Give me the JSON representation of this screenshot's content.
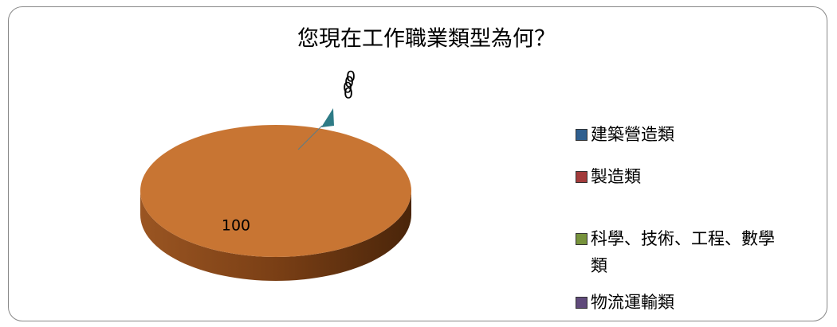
{
  "chart_data": {
    "type": "pie",
    "title": "您現在工作職業類型為何？",
    "categories": [
      "建築營造類",
      "製造類",
      "科學、技術、工程、數學類",
      "物流運輸類",
      null
    ],
    "values": [
      0,
      0,
      0,
      0,
      100
    ],
    "colors": [
      "#2f5f8f",
      "#a33b3b",
      "#77933c",
      "#604a7b",
      "#c87533"
    ],
    "legend": "right"
  }
}
